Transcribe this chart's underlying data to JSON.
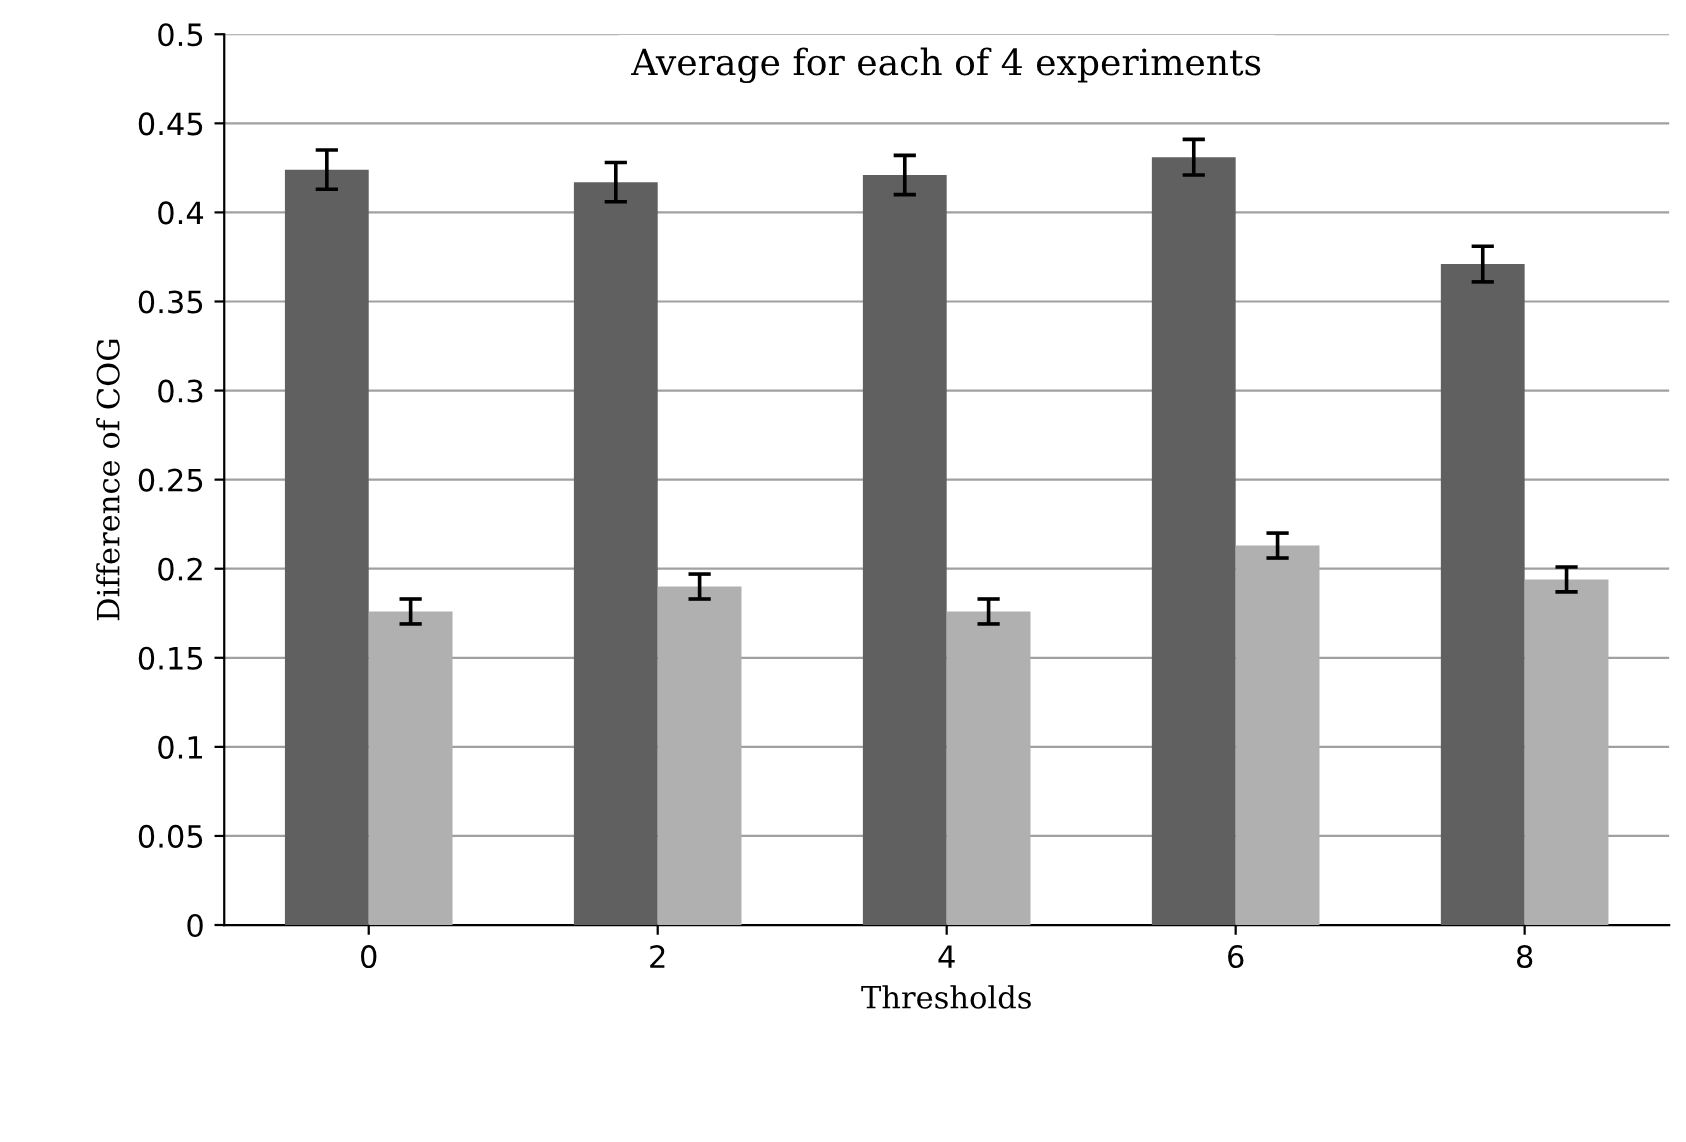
{
  "chart_data": {
    "type": "bar",
    "title": "Average for each of 4 experiments",
    "xlabel": "Thresholds",
    "ylabel": "Difference of COG",
    "categories": [
      "0",
      "2",
      "4",
      "6",
      "8"
    ],
    "series": [
      {
        "color": "#606060",
        "values": [
          0.424,
          0.417,
          0.421,
          0.431,
          0.371
        ],
        "errors": [
          0.011,
          0.011,
          0.011,
          0.01,
          0.01
        ]
      },
      {
        "color": "#b0b0b0",
        "values": [
          0.176,
          0.19,
          0.176,
          0.213,
          0.194
        ],
        "errors": [
          0.007,
          0.007,
          0.007,
          0.007,
          0.007
        ]
      }
    ],
    "ylim": [
      0,
      0.5
    ],
    "yticks": [
      0,
      0.05,
      0.1,
      0.15,
      0.2,
      0.25,
      0.3,
      0.35,
      0.4,
      0.45,
      0.5
    ],
    "grid": "y",
    "legend": false
  }
}
